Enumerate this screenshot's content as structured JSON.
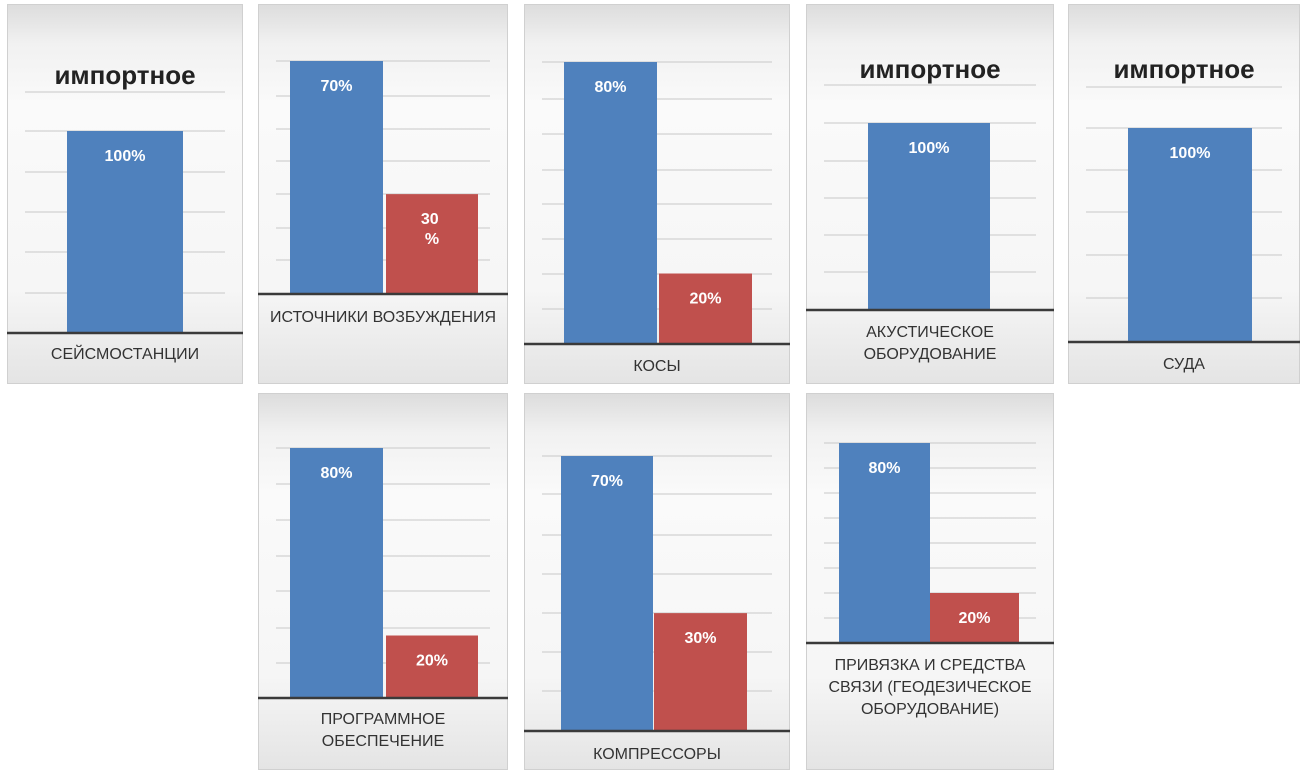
{
  "colors": {
    "imported": "#4f81bd",
    "domestic": "#c0504d"
  },
  "chart_data": [
    {
      "type": "bar",
      "title": "импортное",
      "category": "СЕЙСМОСТАНЦИИ",
      "values": [
        100
      ],
      "labels": [
        "100%"
      ],
      "ylim": [
        0,
        100
      ]
    },
    {
      "type": "bar",
      "title": "",
      "category": "ИСТОЧНИКИ ВОЗБУЖДЕНИЯ",
      "values": [
        70,
        30
      ],
      "labels": [
        "70%",
        "30 %"
      ],
      "ylim": [
        0,
        70
      ]
    },
    {
      "type": "bar",
      "title": "",
      "category": "КОСЫ",
      "values": [
        80,
        20
      ],
      "labels": [
        "80%",
        "20%"
      ],
      "ylim": [
        0,
        80
      ]
    },
    {
      "type": "bar",
      "title": "импортное",
      "category": "АКУСТИЧЕСКОЕ ОБОРУДОВАНИЕ",
      "values": [
        100
      ],
      "labels": [
        "100%"
      ],
      "ylim": [
        0,
        100
      ]
    },
    {
      "type": "bar",
      "title": "импортное",
      "category": "СУДА",
      "values": [
        100
      ],
      "labels": [
        "100%"
      ],
      "ylim": [
        0,
        100
      ]
    },
    {
      "type": "bar",
      "title": "",
      "category": "ПРОГРАММНОЕ ОБЕСПЕЧЕНИЕ",
      "values": [
        80,
        20
      ],
      "labels": [
        "80%",
        "20%"
      ],
      "ylim": [
        0,
        80
      ]
    },
    {
      "type": "bar",
      "title": "",
      "category": "КОМПРЕССОРЫ",
      "values": [
        70,
        30
      ],
      "labels": [
        "70%",
        "30%"
      ],
      "ylim": [
        0,
        70
      ]
    },
    {
      "type": "bar",
      "title": "",
      "category": "ПРИВЯЗКА И СРЕДСТВА СВЯЗИ (ГЕОДЕЗИЧЕСКОЕ ОБОРУДОВАНИЕ)",
      "values": [
        80,
        20
      ],
      "labels": [
        "80%",
        "20%"
      ],
      "ylim": [
        0,
        80
      ]
    }
  ]
}
